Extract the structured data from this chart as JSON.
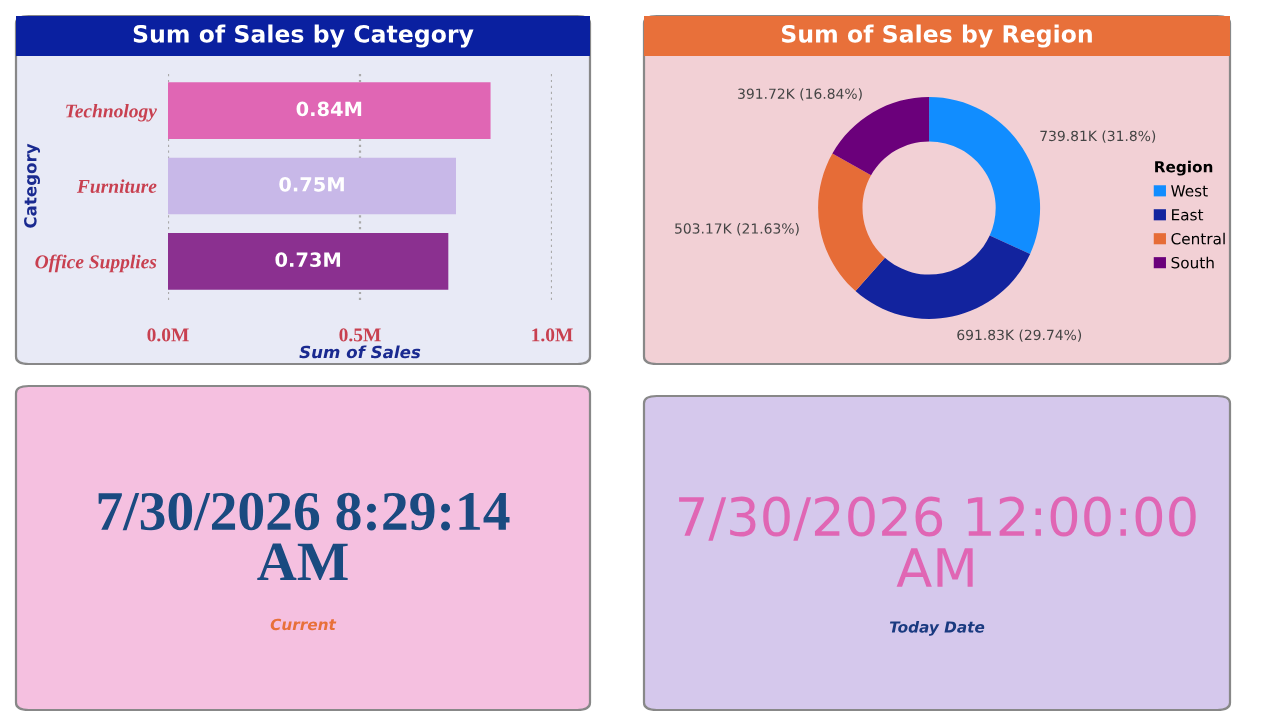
{
  "chart_data": [
    {
      "type": "bar",
      "orientation": "horizontal",
      "title": "Sum of Sales by Category",
      "xlabel": "Sum of Sales",
      "ylabel": "Category",
      "categories": [
        "Technology",
        "Furniture",
        "Office Supplies"
      ],
      "values": [
        0.84,
        0.75,
        0.73
      ],
      "colors": [
        "#e066b4",
        "#c8b8e8",
        "#8b3090"
      ],
      "value_labels": [
        "0.84M",
        "0.75M",
        "0.73M"
      ],
      "xlim": [
        0,
        1.0
      ],
      "xticks": [
        {
          "value": 0,
          "label": "0.0M"
        },
        {
          "value": 0.5,
          "label": "0.5M"
        },
        {
          "value": 1.0,
          "label": "1.0M"
        }
      ],
      "grid": "x"
    },
    {
      "type": "donut",
      "title": "Sum of Sales by Region",
      "legend_title": "Region",
      "categories": [
        "West",
        "East",
        "Central",
        "South"
      ],
      "values": [
        739810,
        691830,
        503170,
        391720
      ],
      "colors": [
        "#118dff",
        "#12239e",
        "#e66c37",
        "#6b007b"
      ],
      "value_labels": [
        "739.81K (31.8%)",
        "691.83K (29.74%)",
        "503.17K (21.63%)",
        "391.72K (16.84%)"
      ],
      "legend": "right"
    },
    {
      "type": "other",
      "annotations": [
        "7/30/2026 8:29:14 AM",
        "Current"
      ]
    },
    {
      "type": "other",
      "annotations": [
        "7/30/2026 12:00:00 AM",
        "Today Date"
      ]
    }
  ]
}
